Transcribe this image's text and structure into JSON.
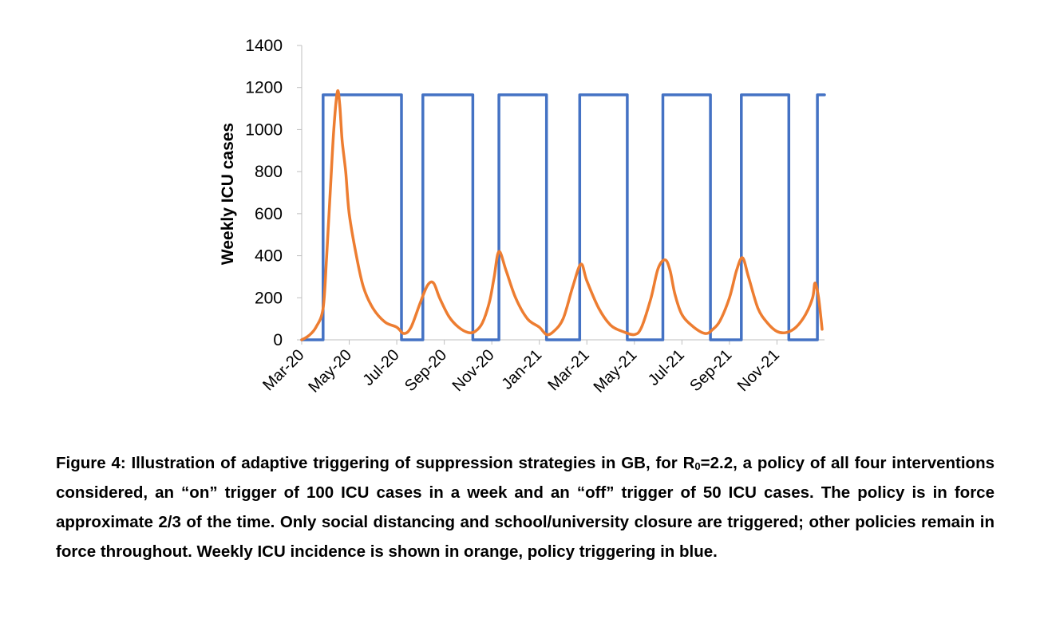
{
  "chart_data": {
    "type": "line",
    "ylabel": "Weekly ICU cases",
    "xlabel": "",
    "ylim": [
      0,
      1400
    ],
    "yticks": [
      0,
      200,
      400,
      600,
      800,
      1000,
      1200,
      1400
    ],
    "xlim": [
      0,
      22
    ],
    "xticks": [
      {
        "x": 0,
        "label": "Mar-20"
      },
      {
        "x": 2,
        "label": "May-20"
      },
      {
        "x": 4,
        "label": "Jul-20"
      },
      {
        "x": 6,
        "label": "Sep-20"
      },
      {
        "x": 8,
        "label": "Nov-20"
      },
      {
        "x": 10,
        "label": "Jan-21"
      },
      {
        "x": 12,
        "label": "Mar-21"
      },
      {
        "x": 14,
        "label": "May-21"
      },
      {
        "x": 16,
        "label": "Jul-21"
      },
      {
        "x": 18,
        "label": "Sep-21"
      },
      {
        "x": 20,
        "label": "Nov-21"
      }
    ],
    "x_unit": "months since Mar-20",
    "grid": false,
    "legend": "none",
    "series": [
      {
        "color": "#4472C4",
        "shape": "step",
        "x": [
          0,
          0.9,
          0.9,
          4.2,
          4.2,
          5.1,
          5.1,
          7.2,
          7.2,
          8.3,
          8.3,
          10.3,
          10.3,
          11.7,
          11.7,
          13.7,
          13.7,
          15.2,
          15.2,
          17.2,
          17.2,
          18.5,
          18.5,
          20.5,
          20.5,
          21.7,
          21.7,
          22
        ],
        "values": [
          0,
          0,
          1165,
          1165,
          0,
          0,
          1165,
          1165,
          0,
          0,
          1165,
          1165,
          0,
          0,
          1165,
          1165,
          0,
          0,
          1165,
          1165,
          0,
          0,
          1165,
          1165,
          0,
          0,
          1165,
          1165
        ]
      },
      {
        "color": "#ED7D31",
        "shape": "smooth",
        "x": [
          0,
          0.3,
          0.6,
          0.9,
          1.05,
          1.2,
          1.35,
          1.5,
          1.6,
          1.7,
          1.85,
          2.0,
          2.3,
          2.6,
          3.0,
          3.5,
          4.0,
          4.3,
          4.6,
          5.0,
          5.3,
          5.55,
          5.8,
          6.2,
          6.6,
          7.0,
          7.3,
          7.6,
          7.9,
          8.1,
          8.3,
          8.6,
          9.0,
          9.5,
          10.0,
          10.3,
          10.6,
          11.0,
          11.4,
          11.75,
          12.0,
          12.5,
          13.0,
          13.5,
          14.0,
          14.3,
          14.7,
          15.0,
          15.3,
          15.5,
          15.7,
          16.0,
          16.5,
          17.0,
          17.3,
          17.6,
          18.0,
          18.3,
          18.55,
          18.8,
          19.2,
          19.6,
          20.0,
          20.4,
          20.8,
          21.2,
          21.5,
          21.6,
          21.75,
          21.9
        ],
        "values": [
          0,
          20,
          60,
          150,
          400,
          700,
          1000,
          1180,
          1120,
          950,
          800,
          600,
          400,
          250,
          150,
          85,
          60,
          30,
          60,
          180,
          260,
          270,
          200,
          110,
          60,
          35,
          40,
          80,
          180,
          300,
          420,
          330,
          200,
          100,
          60,
          25,
          40,
          100,
          250,
          360,
          280,
          150,
          70,
          40,
          25,
          60,
          200,
          340,
          380,
          330,
          220,
          120,
          60,
          30,
          50,
          90,
          200,
          330,
          390,
          300,
          150,
          80,
          40,
          35,
          60,
          120,
          200,
          270,
          200,
          50
        ]
      }
    ]
  },
  "caption": {
    "text_before_sub": "Figure 4: Illustration of adaptive triggering of suppression strategies in GB, for R",
    "sub": "0",
    "text_after_sub": "=2.2, a policy of all four interventions considered, an “on” trigger of 100 ICU cases in a week and an “off” trigger of 50 ICU cases.  The policy is in force approximate 2/3 of the time. Only social distancing and school/university closure are triggered; other policies remain in force throughout. Weekly ICU incidence is shown in orange, policy triggering in blue."
  }
}
